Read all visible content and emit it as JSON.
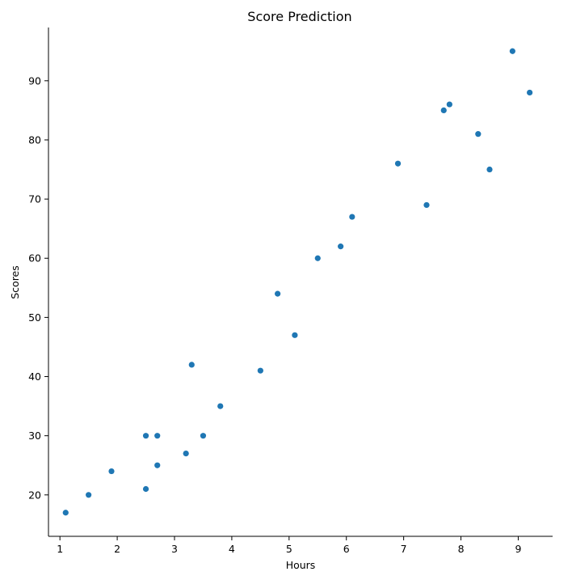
{
  "chart_data": {
    "type": "scatter",
    "title": "Score Prediction",
    "xlabel": "Hours",
    "ylabel": "Scores",
    "xlim": [
      0.8,
      9.6
    ],
    "ylim": [
      13,
      99
    ],
    "x_ticks": [
      1,
      2,
      3,
      4,
      5,
      6,
      7,
      8,
      9
    ],
    "y_ticks": [
      20,
      30,
      40,
      50,
      60,
      70,
      80,
      90
    ],
    "grid": false,
    "color": "#1f77b4",
    "points": [
      {
        "x": 1.1,
        "y": 17
      },
      {
        "x": 1.5,
        "y": 20
      },
      {
        "x": 1.9,
        "y": 24
      },
      {
        "x": 2.5,
        "y": 21
      },
      {
        "x": 2.5,
        "y": 30
      },
      {
        "x": 2.7,
        "y": 25
      },
      {
        "x": 2.7,
        "y": 30
      },
      {
        "x": 3.2,
        "y": 27
      },
      {
        "x": 3.3,
        "y": 42
      },
      {
        "x": 3.5,
        "y": 30
      },
      {
        "x": 3.8,
        "y": 35
      },
      {
        "x": 4.5,
        "y": 41
      },
      {
        "x": 4.8,
        "y": 54
      },
      {
        "x": 5.1,
        "y": 47
      },
      {
        "x": 5.5,
        "y": 60
      },
      {
        "x": 5.9,
        "y": 62
      },
      {
        "x": 6.1,
        "y": 67
      },
      {
        "x": 6.9,
        "y": 76
      },
      {
        "x": 7.4,
        "y": 69
      },
      {
        "x": 7.7,
        "y": 85
      },
      {
        "x": 7.8,
        "y": 86
      },
      {
        "x": 8.3,
        "y": 81
      },
      {
        "x": 8.5,
        "y": 75
      },
      {
        "x": 8.9,
        "y": 95
      },
      {
        "x": 9.2,
        "y": 88
      }
    ]
  }
}
